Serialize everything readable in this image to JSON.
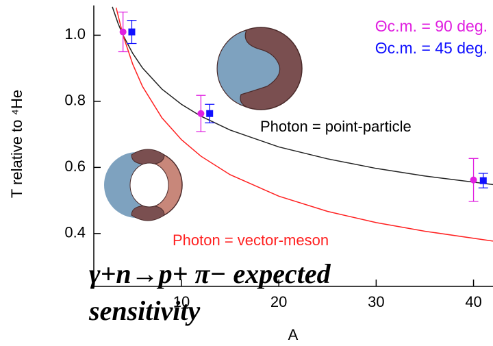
{
  "chart_data": {
    "type": "scatter",
    "xlabel": "A",
    "ylabel": "T relative to ⁴He",
    "xlim": [
      1,
      42
    ],
    "ylim": [
      0.24,
      1.09
    ],
    "xticks": [
      10,
      20,
      30,
      40
    ],
    "yticks": [
      0.4,
      0.6,
      {
        "value": 0.8,
        "label": "0.8"
      },
      {
        "value": 1,
        "label": "1.0"
      }
    ],
    "series": [
      {
        "name": "Θc.m. = 90 deg.",
        "color": "#e020e0",
        "x": [
          4,
          12,
          40
        ],
        "values": [
          1.01,
          0.763,
          0.562
        ],
        "errors": [
          0.06,
          0.055,
          0.065
        ],
        "marker": "circle"
      },
      {
        "name": "Θc.m. = 45 deg.",
        "color": "#1010ff",
        "x": [
          4.9,
          12.9,
          41
        ],
        "values": [
          1.01,
          0.763,
          0.56
        ],
        "errors": [
          0.035,
          0.028,
          0.022
        ],
        "marker": "square"
      }
    ],
    "curves": [
      {
        "label": "Photon = point-particle",
        "color": "#222222",
        "x": [
          2.9,
          3.5,
          4,
          5,
          6,
          8,
          10,
          12,
          15,
          20,
          25,
          30,
          35,
          42
        ],
        "values": [
          1.086,
          1.035,
          1.0,
          0.945,
          0.901,
          0.837,
          0.791,
          0.755,
          0.713,
          0.662,
          0.626,
          0.597,
          0.574,
          0.548
        ]
      },
      {
        "label": "Photon = vector-meson",
        "color": "#ff2020",
        "x": [
          3.3,
          4,
          5,
          6,
          8,
          10,
          12,
          15,
          20,
          25,
          30,
          35,
          42
        ],
        "values": [
          1.083,
          1.0,
          0.912,
          0.845,
          0.75,
          0.684,
          0.634,
          0.578,
          0.513,
          0.467,
          0.433,
          0.407,
          0.377
        ]
      }
    ],
    "overlay_text": [
      "γ+n→p+ π−  expected",
      "sensitivity"
    ]
  }
}
